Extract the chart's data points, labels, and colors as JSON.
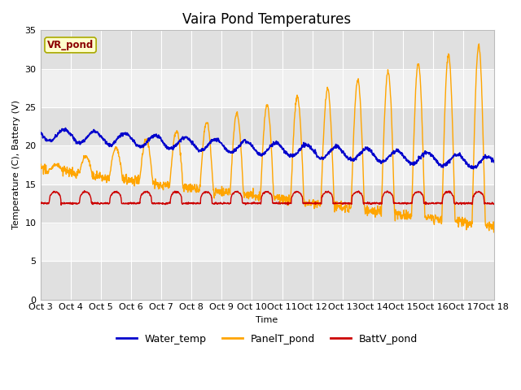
{
  "title": "Vaira Pond Temperatures",
  "xlabel": "Time",
  "ylabel": "Temperature (C), Battery (V)",
  "ylim": [
    0,
    35
  ],
  "x_tick_labels": [
    "Oct 3",
    "Oct 4",
    "Oct 5",
    "Oct 6",
    "Oct 7",
    "Oct 8",
    "Oct 9",
    "Oct 10",
    "Oct 11",
    "Oct 12",
    "Oct 13",
    "Oct 14",
    "Oct 15",
    "Oct 16",
    "Oct 17",
    "Oct 18"
  ],
  "background_color": "#ffffff",
  "plot_bg_light": "#f0f0f0",
  "plot_bg_dark": "#e0e0e0",
  "vr_pond_label": "VR_pond",
  "vr_pond_text_color": "#8b0000",
  "vr_pond_box_color": "#ffffcc",
  "water_temp_color": "#0000cc",
  "panel_temp_color": "#ffa500",
  "batt_v_color": "#cc0000",
  "legend_labels": [
    "Water_temp",
    "PanelT_pond",
    "BattV_pond"
  ],
  "title_fontsize": 12,
  "axis_label_fontsize": 8,
  "tick_fontsize": 8
}
